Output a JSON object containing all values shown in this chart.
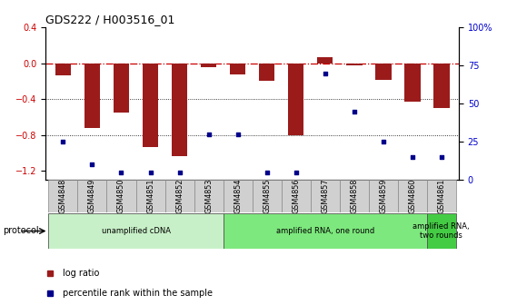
{
  "title": "GDS222 / H003516_01",
  "samples": [
    "GSM4848",
    "GSM4849",
    "GSM4850",
    "GSM4851",
    "GSM4852",
    "GSM4853",
    "GSM4854",
    "GSM4855",
    "GSM4856",
    "GSM4857",
    "GSM4858",
    "GSM4859",
    "GSM4860",
    "GSM4861"
  ],
  "log_ratio": [
    -0.13,
    -0.72,
    -0.55,
    -0.93,
    -1.03,
    -0.04,
    -0.12,
    -0.19,
    -0.8,
    0.07,
    -0.02,
    -0.18,
    -0.43,
    -0.5
  ],
  "percentile": [
    25,
    10,
    5,
    5,
    5,
    30,
    30,
    5,
    5,
    70,
    45,
    25,
    15,
    15
  ],
  "bar_color": "#9B1B1B",
  "dot_color": "#00008B",
  "ylim_left": [
    -1.3,
    0.4
  ],
  "ylim_right": [
    0,
    100
  ],
  "yticks_left": [
    0.4,
    0.0,
    -0.4,
    -0.8,
    -1.2
  ],
  "yticks_right": [
    100,
    75,
    50,
    25,
    0
  ],
  "ytick_right_labels": [
    "100%",
    "75",
    "50",
    "25",
    "0"
  ],
  "hline_y": 0.0,
  "dotted_lines": [
    -0.4,
    -0.8
  ],
  "protocols": [
    {
      "label": "unamplified cDNA",
      "start": 0,
      "end": 6,
      "color": "#c8f0c8"
    },
    {
      "label": "amplified RNA, one round",
      "start": 6,
      "end": 13,
      "color": "#7de87d"
    },
    {
      "label": "amplified RNA,\ntwo rounds",
      "start": 13,
      "end": 14,
      "color": "#44cc44"
    }
  ],
  "legend_items": [
    {
      "label": "log ratio",
      "color": "#9B1B1B"
    },
    {
      "label": "percentile rank within the sample",
      "color": "#00008B"
    }
  ],
  "xlabel_protocol": "protocol",
  "background_color": "#ffffff",
  "tick_bg_color": "#d0d0d0",
  "left_ytick_color": "#cc0000",
  "right_ytick_color": "#0000cc"
}
